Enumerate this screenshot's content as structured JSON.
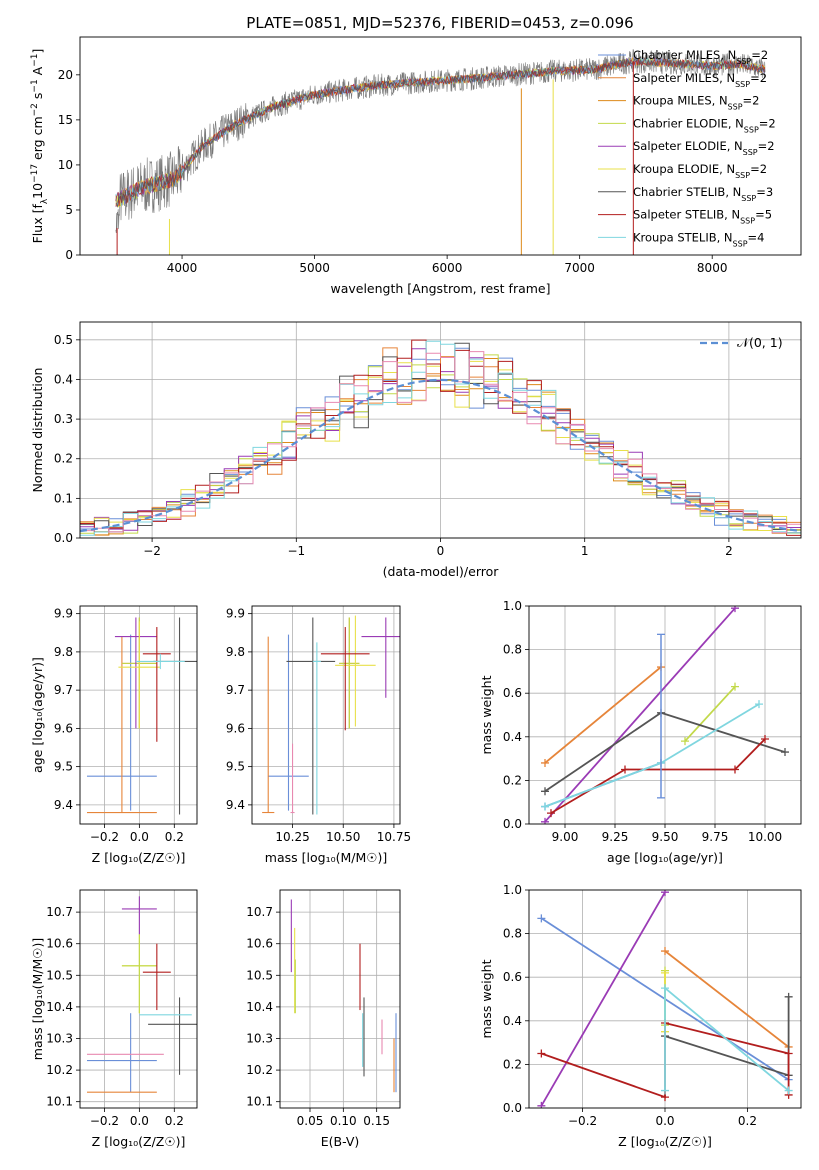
{
  "figure_title": "PLATE=0851, MJD=52376, FIBERID=0453, z=0.096",
  "colors": {
    "Chabrier MILES": "#6a8fd8",
    "Salpeter MILES": "#e6853a",
    "Kroupa MILES": "#dd8a1a",
    "Chabrier ELODIE": "#c2d94a",
    "Salpeter ELODIE": "#9a3bb5",
    "Kroupa ELODIE": "#e8e04a",
    "Chabrier STELIB": "#555555",
    "Salpeter STELIB": "#b21e1e",
    "Kroupa STELIB": "#7fd6df",
    "pink": "#e889b0",
    "normal": "#5b8fd4"
  },
  "chart_data": [
    {
      "id": "spectrum",
      "type": "line",
      "xlabel": "wavelength [Angstrom, rest frame]",
      "ylabel": "Flux [f",
      "ylabel_sub": "λ",
      "ylabel_rest": "10",
      "ylabel_exp": "−17",
      "ylabel_unit": " erg cm",
      "ylabel_unit_exp": "−2",
      "ylabel_s": " s",
      "ylabel_s_exp": "−1",
      "ylabel_A": " A",
      "ylabel_A_exp": "−1",
      "ylabel_end": "]",
      "xlim": [
        3230,
        8670
      ],
      "ylim": [
        0,
        24.2
      ],
      "xticks": [
        4000,
        5000,
        6000,
        7000,
        8000
      ],
      "yticks": [
        0,
        5,
        10,
        15,
        20
      ],
      "envelope_x": [
        3500,
        3700,
        3950,
        4150,
        4400,
        4700,
        5000,
        5300,
        5600,
        5900,
        6200,
        6500,
        6800,
        7100,
        7400,
        7700,
        8000,
        8200,
        8400
      ],
      "envelope_y": [
        6.0,
        7.5,
        8.5,
        12.0,
        14.5,
        16.5,
        17.8,
        18.5,
        19.0,
        19.3,
        19.6,
        20.0,
        20.4,
        20.6,
        21.5,
        21.3,
        21.0,
        21.2,
        20.6
      ],
      "legend": [
        {
          "label": "Chabrier MILES, N",
          "sub": "SSP",
          "val": "=2"
        },
        {
          "label": "Salpeter MILES, N",
          "sub": "SSP",
          "val": "=2"
        },
        {
          "label": "Kroupa MILES, N",
          "sub": "SSP",
          "val": "=2"
        },
        {
          "label": "Chabrier ELODIE, N",
          "sub": "SSP",
          "val": "=2"
        },
        {
          "label": "Salpeter ELODIE, N",
          "sub": "SSP",
          "val": "=2"
        },
        {
          "label": "Kroupa ELODIE, N",
          "sub": "SSP",
          "val": "=2"
        },
        {
          "label": "Chabrier STELIB, N",
          "sub": "SSP",
          "val": "=3"
        },
        {
          "label": "Salpeter STELIB, N",
          "sub": "SSP",
          "val": "=5"
        },
        {
          "label": "Kroupa STELIB, N",
          "sub": "SSP",
          "val": "=4"
        }
      ]
    },
    {
      "id": "residuals",
      "type": "histogram",
      "xlabel": "(data-model)/error",
      "ylabel": "Normed distribution",
      "xlim": [
        -2.5,
        2.5
      ],
      "ylim": [
        0,
        0.545
      ],
      "xticks": [
        -2,
        -1,
        0,
        1,
        2
      ],
      "yticks": [
        0.0,
        0.1,
        0.2,
        0.3,
        0.4,
        0.5
      ],
      "legend": "𝒩(0, 1)",
      "bin_width": 0.1,
      "bin_start": -2.5
    },
    {
      "id": "age_vs_Z",
      "type": "errorbar",
      "xlabel": "Z [log₁₀(Z/Z☉)]",
      "ylabel": "age  [log₁₀(age/yr)]",
      "xlim": [
        -0.34,
        0.33
      ],
      "ylim": [
        9.35,
        9.92
      ],
      "xticks": [
        -0.2,
        0.0,
        0.2
      ],
      "yticks": [
        9.4,
        9.5,
        9.6,
        9.7,
        9.8,
        9.9
      ],
      "points": [
        {
          "c": "Chabrier MILES",
          "x": -0.05,
          "xerr": [
            0.25,
            0.15
          ],
          "y": 9.475,
          "yerr": [
            0.09,
            0.37
          ]
        },
        {
          "c": "Salpeter MILES",
          "x": -0.1,
          "xerr": [
            0.2,
            0.2
          ],
          "y": 9.38,
          "yerr": [
            0.0,
            0.46
          ]
        },
        {
          "c": "Kroupa MILES",
          "x": 0.0,
          "xerr": [
            0.1,
            0.1
          ],
          "y": 9.77,
          "yerr": [
            0.17,
            0.12
          ]
        },
        {
          "c": "Chabrier ELODIE",
          "x": 0.0,
          "xerr": [
            0.1,
            0.1
          ],
          "y": 9.77,
          "yerr": [
            0.17,
            0.12
          ]
        },
        {
          "c": "Salpeter ELODIE",
          "x": -0.02,
          "xerr": [
            0.12,
            0.12
          ],
          "y": 9.84,
          "yerr": [
            0.24,
            0.05
          ]
        },
        {
          "c": "Kroupa ELODIE",
          "x": 0.0,
          "xerr": [
            0.12,
            0.12
          ],
          "y": 9.76,
          "yerr": [
            0.16,
            0.12
          ]
        },
        {
          "c": "Chabrier STELIB",
          "x": 0.23,
          "xerr": [
            0.15,
            0.1
          ],
          "y": 9.775,
          "yerr": [
            0.4,
            0.115
          ]
        },
        {
          "c": "Salpeter STELIB",
          "x": 0.1,
          "xerr": [
            0.08,
            0.08
          ],
          "y": 9.795,
          "yerr": [
            0.23,
            0.07
          ]
        },
        {
          "c": "Kroupa STELIB",
          "x": 0.12,
          "xerr": [
            0.14,
            0.14
          ],
          "y": 9.775,
          "yerr": [
            0.02,
            0.02
          ]
        }
      ]
    },
    {
      "id": "age_vs_mass",
      "type": "errorbar",
      "xlabel": "mass [log₁₀(M/M☉)]",
      "xlim": [
        10.05,
        10.78
      ],
      "ylim": [
        9.35,
        9.92
      ],
      "xticks": [
        10.25,
        10.5,
        10.75
      ],
      "yticks": [
        9.4,
        9.5,
        9.6,
        9.7,
        9.8,
        9.9
      ],
      "points": [
        {
          "c": "Chabrier MILES",
          "x": 10.23,
          "xerr": [
            0.1,
            0.1
          ],
          "y": 9.475,
          "yerr": [
            0.09,
            0.37
          ]
        },
        {
          "c": "Salpeter MILES",
          "x": 10.13,
          "xerr": [
            0.03,
            0.03
          ],
          "y": 9.38,
          "yerr": [
            0.0,
            0.46
          ]
        },
        {
          "c": "Kroupa MILES",
          "x": 10.53,
          "xerr": [
            0.05,
            0.05
          ],
          "y": 9.77,
          "yerr": [
            0.17,
            0.12
          ]
        },
        {
          "c": "Chabrier ELODIE",
          "x": 10.53,
          "xerr": [
            0.05,
            0.05
          ],
          "y": 9.77,
          "yerr": [
            0.17,
            0.12
          ]
        },
        {
          "c": "Salpeter ELODIE",
          "x": 10.71,
          "xerr": [
            0.12,
            0.1
          ],
          "y": 9.84,
          "yerr": [
            0.16,
            0.05
          ]
        },
        {
          "c": "Kroupa ELODIE",
          "x": 10.56,
          "xerr": [
            0.1,
            0.1
          ],
          "y": 9.765,
          "yerr": [
            0.16,
            0.13
          ]
        },
        {
          "c": "Chabrier STELIB",
          "x": 10.35,
          "xerr": [
            0.13,
            0.11
          ],
          "y": 9.775,
          "yerr": [
            0.4,
            0.115
          ]
        },
        {
          "c": "Salpeter STELIB",
          "x": 10.51,
          "xerr": [
            0.12,
            0.12
          ],
          "y": 9.795,
          "yerr": [
            0.2,
            0.07
          ]
        },
        {
          "c": "Kroupa STELIB",
          "x": 10.37,
          "xerr": [
            0.02,
            0.02
          ],
          "y": 9.775,
          "yerr": [
            0.4,
            0.05
          ]
        },
        {
          "c": "pink",
          "x": 10.25,
          "xerr": [
            0.01,
            0.01
          ],
          "y": 9.38,
          "yerr": [
            0.0,
            0.18
          ]
        }
      ]
    },
    {
      "id": "massweight_vs_age",
      "type": "line",
      "xlabel": "age  [log₁₀(age/yr)]",
      "ylabel": "mass weight",
      "xlim": [
        8.82,
        10.18
      ],
      "ylim": [
        0,
        1.0
      ],
      "xticks": [
        9.0,
        9.25,
        9.5,
        9.75,
        10.0
      ],
      "yticks": [
        0.0,
        0.2,
        0.4,
        0.6,
        0.8,
        1.0
      ],
      "series": [
        {
          "c": "Chabrier MILES",
          "x": [
            8.9,
            9.48
          ],
          "y": [
            0.08,
            0.28
          ]
        },
        {
          "c": "Salpeter MILES",
          "x": [
            8.9,
            9.48
          ],
          "y": [
            0.28,
            0.72
          ]
        },
        {
          "c": "Chabrier ELODIE",
          "x": [
            9.6,
            9.85
          ],
          "y": [
            0.38,
            0.63
          ]
        },
        {
          "c": "Salpeter ELODIE",
          "x": [
            8.9,
            9.85
          ],
          "y": [
            0.01,
            0.99
          ]
        },
        {
          "c": "Chabrier STELIB",
          "x": [
            8.9,
            9.48,
            10.1
          ],
          "y": [
            0.15,
            0.51,
            0.33
          ]
        },
        {
          "c": "Salpeter STELIB",
          "x": [
            8.93,
            9.3,
            9.85,
            10.0
          ],
          "y": [
            0.05,
            0.25,
            0.25,
            0.39
          ]
        },
        {
          "c": "Kroupa STELIB",
          "x": [
            8.9,
            9.48,
            9.97
          ],
          "y": [
            0.08,
            0.28,
            0.55
          ]
        }
      ],
      "errbar": {
        "c": "Chabrier MILES",
        "x": 9.48,
        "y0": 0.12,
        "y1": 0.87
      }
    },
    {
      "id": "mass_vs_Z",
      "type": "errorbar",
      "xlabel": "Z [log₁₀(Z/Z☉)]",
      "ylabel": "mass [log₁₀(M/M☉)]",
      "xlim": [
        -0.34,
        0.33
      ],
      "ylim": [
        10.08,
        10.77
      ],
      "xticks": [
        -0.2,
        0.0,
        0.2
      ],
      "yticks": [
        10.1,
        10.2,
        10.3,
        10.4,
        10.5,
        10.6,
        10.7
      ],
      "points": [
        {
          "c": "Chabrier MILES",
          "x": -0.05,
          "xerr": [
            0.25,
            0.15
          ],
          "y": 10.23,
          "yerr": [
            0.1,
            0.15
          ]
        },
        {
          "c": "Salpeter MILES",
          "x": -0.1,
          "xerr": [
            0.2,
            0.2
          ],
          "y": 10.13,
          "yerr": [
            0.0,
            0.0
          ]
        },
        {
          "c": "pink",
          "x": -0.08,
          "xerr": [
            0.22,
            0.22
          ],
          "y": 10.25,
          "yerr": [
            0.0,
            0.0
          ]
        },
        {
          "c": "Kroupa ELODIE",
          "x": 0.0,
          "xerr": [
            0.1,
            0.1
          ],
          "y": 10.53,
          "yerr": [
            0.15,
            0.1
          ]
        },
        {
          "c": "Chabrier ELODIE",
          "x": 0.0,
          "xerr": [
            0.1,
            0.1
          ],
          "y": 10.53,
          "yerr": [
            0.15,
            0.1
          ]
        },
        {
          "c": "Salpeter ELODIE",
          "x": 0.0,
          "xerr": [
            0.1,
            0.1
          ],
          "y": 10.71,
          "yerr": [
            0.08,
            0.04
          ]
        },
        {
          "c": "Salpeter STELIB",
          "x": 0.1,
          "xerr": [
            0.08,
            0.08
          ],
          "y": 10.51,
          "yerr": [
            0.12,
            0.09
          ]
        },
        {
          "c": "Chabrier STELIB",
          "x": 0.23,
          "xerr": [
            0.18,
            0.1
          ],
          "y": 10.345,
          "yerr": [
            0.16,
            0.085
          ]
        },
        {
          "c": "Kroupa STELIB",
          "x": 0.15,
          "xerr": [
            0.15,
            0.15
          ],
          "y": 10.375,
          "yerr": [
            0.0,
            0.0
          ]
        }
      ]
    },
    {
      "id": "mass_vs_ebv",
      "type": "errorbar",
      "xlabel": "E(B-V)",
      "xlim": [
        0.005,
        0.185
      ],
      "ylim": [
        10.08,
        10.77
      ],
      "xticks": [
        0.05,
        0.1,
        0.15
      ],
      "yticks": [
        10.1,
        10.2,
        10.3,
        10.4,
        10.5,
        10.6,
        10.7
      ],
      "points": [
        {
          "c": "Salpeter ELODIE",
          "x": 0.022,
          "y0": 10.51,
          "y1": 10.74
        },
        {
          "c": "Kroupa ELODIE",
          "x": 0.027,
          "y0": 10.38,
          "y1": 10.65
        },
        {
          "c": "Chabrier ELODIE",
          "x": 0.028,
          "y0": 10.38,
          "y1": 10.55
        },
        {
          "c": "Salpeter STELIB",
          "x": 0.125,
          "y0": 10.39,
          "y1": 10.6
        },
        {
          "c": "Chabrier STELIB",
          "x": 0.131,
          "y0": 10.18,
          "y1": 10.43
        },
        {
          "c": "Kroupa STELIB",
          "x": 0.129,
          "y0": 10.21,
          "y1": 10.38
        },
        {
          "c": "pink",
          "x": 0.158,
          "y0": 10.25,
          "y1": 10.36
        },
        {
          "c": "Salpeter MILES",
          "x": 0.176,
          "y0": 10.13,
          "y1": 10.3
        },
        {
          "c": "Chabrier MILES",
          "x": 0.179,
          "y0": 10.13,
          "y1": 10.38
        }
      ]
    },
    {
      "id": "massweight_vs_Z",
      "type": "line",
      "xlabel": "Z [log₁₀(Z/Z☉)]",
      "ylabel": "mass weight",
      "xlim": [
        -0.33,
        0.33
      ],
      "ylim": [
        0,
        1.0
      ],
      "xticks": [
        -0.2,
        0.0,
        0.2
      ],
      "yticks": [
        0.0,
        0.2,
        0.4,
        0.6,
        0.8,
        1.0
      ],
      "series": [
        {
          "c": "Chabrier MILES",
          "x": [
            -0.3,
            0.3
          ],
          "y": [
            0.87,
            0.13
          ]
        },
        {
          "c": "Salpeter MILES",
          "x": [
            0.0,
            0.3
          ],
          "y": [
            0.72,
            0.28
          ]
        },
        {
          "c": "Salpeter ELODIE",
          "x": [
            -0.3,
            0.0
          ],
          "y": [
            0.01,
            0.99
          ]
        },
        {
          "c": "Chabrier ELODIE",
          "x": [
            0.0,
            0.0
          ],
          "y": [
            0.38,
            0.63
          ]
        },
        {
          "c": "Kroupa ELODIE",
          "x": [
            0.0,
            0.0
          ],
          "y": [
            0.35,
            0.62
          ]
        },
        {
          "c": "Chabrier STELIB",
          "x": [
            0.0,
            0.3,
            0.3
          ],
          "y": [
            0.33,
            0.15,
            0.51
          ]
        },
        {
          "c": "Salpeter STELIB",
          "x": [
            -0.3,
            0.0,
            0.0,
            0.3,
            0.3
          ],
          "y": [
            0.25,
            0.05,
            0.39,
            0.25,
            0.06
          ]
        },
        {
          "c": "Kroupa STELIB",
          "x": [
            0.0,
            0.0,
            0.3
          ],
          "y": [
            0.08,
            0.55,
            0.08
          ]
        }
      ]
    }
  ]
}
